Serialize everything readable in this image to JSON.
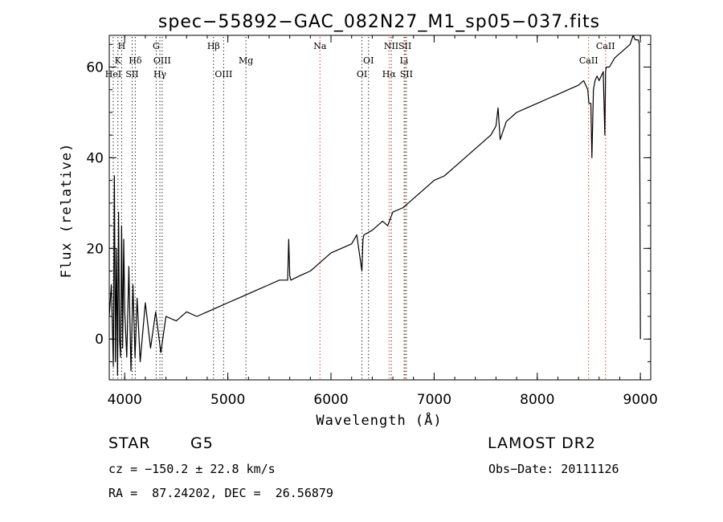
{
  "chart_data": {
    "type": "line",
    "title": "spec−55892−GAC_082N27_M1_sp05−037.fits",
    "xlabel": "Wavelength (Å)",
    "ylabel": "Flux (relative)",
    "xlim": [
      3850,
      9100
    ],
    "ylim": [
      -9,
      67
    ],
    "xticks": [
      {
        "value": 4000,
        "label": "4000"
      },
      {
        "value": 5000,
        "label": "5000"
      },
      {
        "value": 6000,
        "label": "6000"
      },
      {
        "value": 7000,
        "label": "7000"
      },
      {
        "value": 8000,
        "label": "8000"
      },
      {
        "value": 9000,
        "label": "9000"
      }
    ],
    "yticks": [
      {
        "value": 0,
        "label": "0"
      },
      {
        "value": 20,
        "label": "20"
      },
      {
        "value": 40,
        "label": "40"
      },
      {
        "value": 60,
        "label": "60"
      }
    ],
    "grid": false,
    "spectrum": {
      "x": [
        3850,
        3870,
        3890,
        3900,
        3910,
        3920,
        3930,
        3940,
        3950,
        3960,
        3970,
        3980,
        3990,
        4000,
        4020,
        4040,
        4060,
        4080,
        4100,
        4120,
        4150,
        4200,
        4250,
        4300,
        4350,
        4400,
        4500,
        4600,
        4700,
        4800,
        4900,
        5000,
        5100,
        5200,
        5300,
        5400,
        5500,
        5580,
        5590,
        5600,
        5610,
        5700,
        5800,
        5850,
        5900,
        6000,
        6100,
        6200,
        6250,
        6300,
        6310,
        6320,
        6400,
        6500,
        6550,
        6600,
        6700,
        6800,
        6900,
        7000,
        7100,
        7200,
        7300,
        7400,
        7500,
        7550,
        7600,
        7620,
        7640,
        7700,
        7800,
        7900,
        8000,
        8100,
        8200,
        8300,
        8400,
        8450,
        8490,
        8500,
        8520,
        8530,
        8545,
        8560,
        8580,
        8600,
        8620,
        8640,
        8655,
        8662,
        8670,
        8700,
        8750,
        8800,
        8850,
        8900,
        8930,
        8950,
        8980,
        8990,
        9000
      ],
      "y": [
        5,
        12,
        -6,
        36,
        -5,
        20,
        -8,
        28,
        0,
        -4,
        25,
        -2,
        22,
        6,
        -4,
        16,
        -7,
        12,
        -4,
        9,
        -5,
        8,
        -2,
        6,
        -3,
        5,
        4,
        6,
        5,
        6,
        7,
        8,
        9,
        10,
        11,
        12,
        13,
        13,
        22,
        14,
        13,
        14,
        15,
        16,
        17,
        19,
        20,
        21,
        23,
        15,
        22,
        23,
        24,
        26,
        25,
        28,
        29,
        31,
        33,
        35,
        36,
        38,
        40,
        42,
        44,
        45,
        47,
        51,
        44,
        48,
        50,
        51,
        52,
        53,
        54,
        55,
        56,
        57,
        55,
        52,
        52,
        40,
        55,
        57,
        58,
        57,
        58,
        59,
        45,
        59,
        60,
        60,
        62,
        63,
        64,
        65,
        67,
        66,
        66,
        65,
        0
      ]
    },
    "lines": [
      {
        "name": "H",
        "x": 3970,
        "row": 0,
        "color": "#000000"
      },
      {
        "name": "K",
        "x": 3934,
        "row": 1,
        "color": "#000000"
      },
      {
        "name": "HeI",
        "x": 3889,
        "row": 2,
        "color": "#000000"
      },
      {
        "name": "Hδ",
        "x": 4102,
        "row": 1,
        "color": "#000000"
      },
      {
        "name": "SII",
        "x": 4072,
        "row": 2,
        "color": "#000000"
      },
      {
        "name": "G",
        "x": 4305,
        "row": 0,
        "color": "#000000"
      },
      {
        "name": "OIII",
        "x": 4363,
        "row": 1,
        "color": "#000000"
      },
      {
        "name": "Hγ",
        "x": 4341,
        "row": 2,
        "color": "#000000"
      },
      {
        "name": "Hβ",
        "x": 4861,
        "row": 0,
        "color": "#000000"
      },
      {
        "name": "OIII",
        "x": 4959,
        "row": 2,
        "color": "#000000"
      },
      {
        "name": "Mg",
        "x": 5175,
        "row": 1,
        "color": "#000000"
      },
      {
        "name": "Na",
        "x": 5893,
        "row": 0,
        "color": "#ff0000"
      },
      {
        "name": "OI",
        "x": 6364,
        "row": 1,
        "color": "#000000"
      },
      {
        "name": "OI",
        "x": 6300,
        "row": 2,
        "color": "#000000"
      },
      {
        "name": "NII",
        "x": 6584,
        "row": 0,
        "color": "#000000"
      },
      {
        "name": "Hα",
        "x": 6563,
        "row": 2,
        "color": "#ff0000"
      },
      {
        "name": "SII",
        "x": 6717,
        "row": 0,
        "color": "#000000"
      },
      {
        "name": "Li",
        "x": 6708,
        "row": 1,
        "color": "#ff0000"
      },
      {
        "name": "SII",
        "x": 6731,
        "row": 2,
        "color": "#000000"
      },
      {
        "name": "CaII",
        "x": 8662,
        "row": 0,
        "color": "#ff0000"
      },
      {
        "name": "CaII",
        "x": 8498,
        "row": 1,
        "color": "#ff0000"
      }
    ]
  },
  "info": {
    "class_label": "STAR",
    "subclass": "G5",
    "survey": "LAMOST DR2",
    "cz": "cz = −150.2 ± 22.8 km/s",
    "obs_date": "Obs−Date: 20111126",
    "radec": "RA =  87.24202, DEC =  26.56879"
  }
}
